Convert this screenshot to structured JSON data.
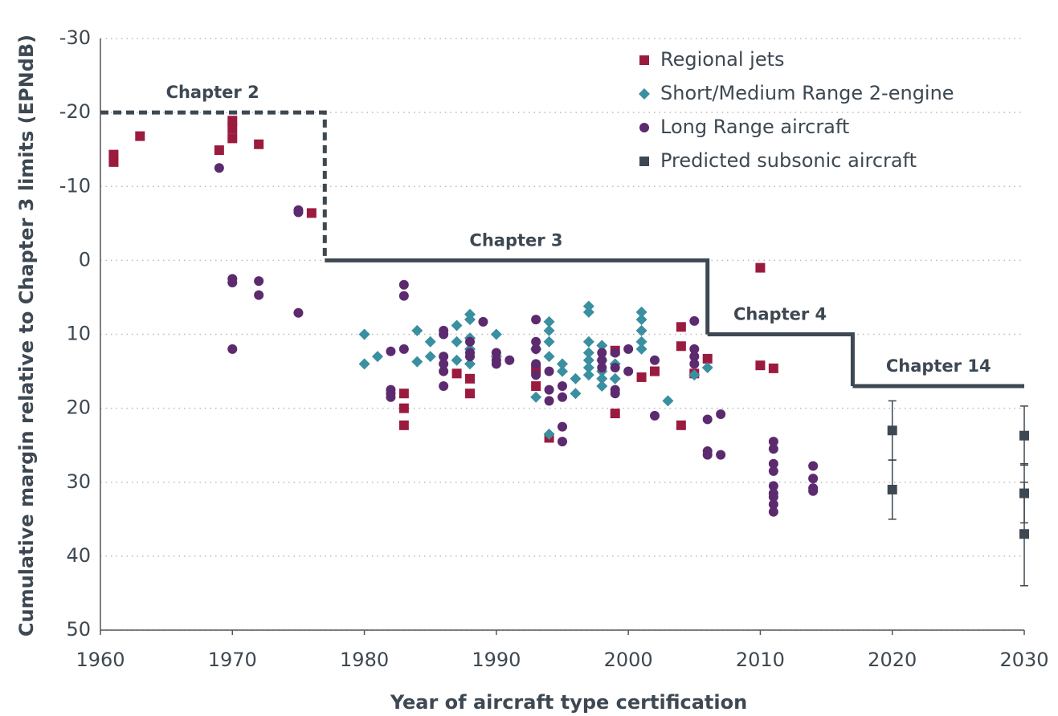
{
  "chart_data": {
    "type": "scatter",
    "x_label": "Year of aircraft type certification",
    "y_label": "Cumulative margin relative to Chapter 3 limits (EPNdB)",
    "xlim": [
      1960,
      2030
    ],
    "xticks": [
      1960,
      1970,
      1980,
      1990,
      2000,
      2010,
      2020,
      2030
    ],
    "ylim": [
      -30,
      50
    ],
    "y_inverted": true,
    "yticks": [
      -30,
      -20,
      -10,
      0,
      10,
      20,
      30,
      40,
      50
    ],
    "grid": true,
    "legend": "top-right",
    "limits": [
      {
        "name": "Chapter 2",
        "x": [
          1960,
          1977
        ],
        "y": -20,
        "dashed": true
      },
      {
        "name": "Chapter 3",
        "x": [
          1977,
          2006
        ],
        "y": 0,
        "dashed": false
      },
      {
        "name": "Chapter 4",
        "x": [
          2006,
          2017
        ],
        "y": 10,
        "dashed": false
      },
      {
        "name": "Chapter 14",
        "x": [
          2017,
          2030
        ],
        "y": 17,
        "dashed": false
      }
    ],
    "limit_color": "#3d4852",
    "series": [
      {
        "name": "Regional jets",
        "color": "#9b1b3f",
        "marker": "square",
        "x": [
          1961,
          1961,
          1963,
          1969,
          1970,
          1970,
          1970,
          1972,
          1976,
          1983,
          1983,
          1983,
          1987,
          1988,
          1988,
          1993,
          1993,
          1994,
          1999,
          1999,
          2001,
          2002,
          2004,
          2004,
          2004,
          2005,
          2006,
          2010,
          2010,
          2011
        ],
        "values": [
          -14.3,
          -13.3,
          -16.8,
          -14.9,
          -18.9,
          -17.8,
          -16.5,
          -15.7,
          -6.4,
          18,
          20,
          22.3,
          15.3,
          16,
          18,
          14.7,
          17,
          24,
          12.2,
          20.7,
          15.8,
          15,
          9,
          11.6,
          22.3,
          15.3,
          13.3,
          1,
          14.2,
          14.6
        ]
      },
      {
        "name": "Short/Medium Range 2-engine",
        "color": "#3a8fa0",
        "marker": "diamond",
        "x": [
          1980,
          1980,
          1981,
          1984,
          1984,
          1985,
          1985,
          1987,
          1987,
          1987,
          1988,
          1988,
          1988,
          1988,
          1988,
          1990,
          1990,
          1993,
          1993,
          1994,
          1994,
          1994,
          1994,
          1994,
          1995,
          1995,
          1996,
          1996,
          1997,
          1997,
          1997,
          1997,
          1997,
          1997,
          1997,
          1998,
          1998,
          1998,
          1998,
          1998,
          1999,
          1999,
          2001,
          2001,
          2001,
          2001,
          2001,
          2003,
          2005,
          2006
        ],
        "values": [
          10,
          14,
          13,
          9.5,
          13.7,
          11,
          13,
          8.8,
          11,
          13.5,
          7.3,
          8,
          10.5,
          12,
          14,
          10,
          13,
          12,
          18.5,
          8.3,
          9.5,
          11,
          13,
          23.5,
          14,
          15,
          16,
          18,
          6.2,
          7,
          11,
          12.5,
          13.5,
          14.5,
          15.5,
          11.5,
          13.5,
          15,
          16,
          17,
          14,
          16,
          7,
          8,
          9.5,
          11,
          12,
          19,
          15.5,
          14.5
        ]
      },
      {
        "name": "Long Range aircraft",
        "color": "#5c2a6e",
        "marker": "circle",
        "x": [
          1969,
          1970,
          1970,
          1970,
          1972,
          1972,
          1975,
          1975,
          1975,
          1982,
          1982,
          1982,
          1982,
          1983,
          1983,
          1983,
          1986,
          1986,
          1986,
          1986,
          1986,
          1986,
          1988,
          1988,
          1988,
          1989,
          1990,
          1990,
          1990,
          1991,
          1993,
          1993,
          1993,
          1993,
          1993,
          1994,
          1994,
          1994,
          1995,
          1995,
          1995,
          1995,
          1998,
          1998,
          1998,
          1999,
          1999,
          1999,
          1999,
          2000,
          2000,
          2002,
          2002,
          2005,
          2005,
          2005,
          2005,
          2006,
          2006,
          2006,
          2007,
          2007,
          2011,
          2011,
          2011,
          2011,
          2011,
          2011,
          2011,
          2011,
          2011,
          2014,
          2014,
          2014,
          2014
        ],
        "values": [
          -12.5,
          2.5,
          3,
          12,
          2.8,
          4.7,
          -6.5,
          -6.8,
          7.1,
          12.3,
          17.5,
          18,
          18.5,
          3.3,
          4.8,
          12,
          9.5,
          10,
          13,
          14,
          15,
          17,
          11,
          12.5,
          13,
          8.3,
          12.5,
          13.5,
          14,
          13.5,
          8,
          11,
          12,
          14,
          15.5,
          15,
          17.5,
          19,
          17,
          18.5,
          22.5,
          24.5,
          12.5,
          13.5,
          14.5,
          12.5,
          14.5,
          17.5,
          18,
          12,
          15,
          13.5,
          21,
          8.2,
          12,
          13,
          14,
          21.5,
          25.8,
          26.3,
          20.8,
          26.3,
          24.5,
          25.5,
          27.5,
          28.5,
          30.5,
          31.5,
          32,
          33,
          34,
          27.8,
          29.5,
          30.8,
          31.2
        ]
      },
      {
        "name": "Predicted subsonic aircraft",
        "color": "#3d4852",
        "marker": "square",
        "x": [
          2020,
          2020,
          2030,
          2030,
          2030
        ],
        "values": [
          23,
          31,
          23.7,
          31.5,
          37
        ],
        "errors": [
          4,
          4,
          4,
          4,
          7
        ]
      }
    ]
  }
}
